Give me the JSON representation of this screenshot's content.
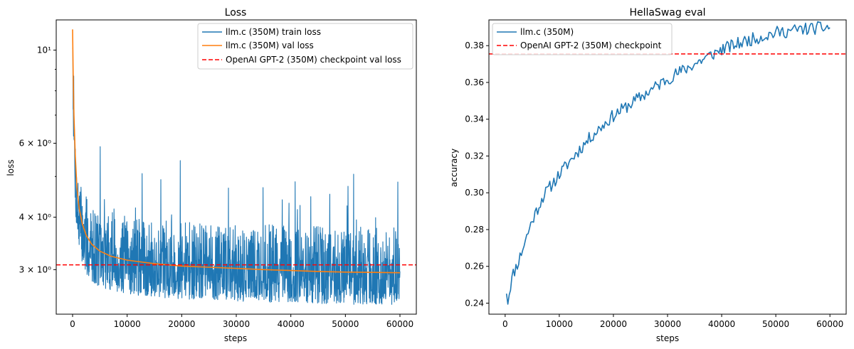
{
  "chart_data": [
    {
      "type": "line",
      "title": "Loss",
      "xlabel": "steps",
      "ylabel": "loss",
      "yscale": "log",
      "xlim": [
        -3000,
        63000
      ],
      "ylim": [
        2.35,
        11.8
      ],
      "xticks": [
        0,
        10000,
        20000,
        30000,
        40000,
        50000,
        60000
      ],
      "xtick_labels": [
        "0",
        "10000",
        "20000",
        "30000",
        "40000",
        "50000",
        "60000"
      ],
      "yticks": [
        3,
        4,
        6,
        10
      ],
      "ytick_labels": [
        "3 × 10⁰",
        "4 × 10⁰",
        "6 × 10⁰",
        "10¹"
      ],
      "legend_position": "upper right",
      "series": [
        {
          "name": "llm.c (350M) train loss",
          "color": "#1f77b4",
          "style": "solid",
          "kind": "noisy",
          "x_range": [
            0,
            60000
          ],
          "samples": 1400,
          "trend_x": [
            0,
            100,
            300,
            600,
            1000,
            1500,
            2000,
            3000,
            5000,
            8000,
            12000,
            20000,
            30000,
            40000,
            50000,
            60000
          ],
          "trend_y": [
            11.2,
            8.0,
            5.9,
            4.6,
            4.0,
            3.75,
            3.55,
            3.35,
            3.2,
            3.12,
            3.06,
            3.0,
            2.97,
            2.94,
            2.92,
            2.9
          ],
          "noise_low": 0.85,
          "noise_high": 1.3,
          "seed": 7
        },
        {
          "name": "llm.c (350M) val loss",
          "color": "#ff7f0e",
          "style": "solid",
          "kind": "smooth",
          "x": [
            0,
            100,
            250,
            500,
            800,
            1200,
            1800,
            2500,
            3500,
            5000,
            7000,
            10000,
            15000,
            20000,
            25000,
            30000,
            35000,
            40000,
            45000,
            50000,
            55000,
            60000
          ],
          "y": [
            11.2,
            8.8,
            7.0,
            5.6,
            4.7,
            4.2,
            3.85,
            3.62,
            3.45,
            3.32,
            3.23,
            3.16,
            3.1,
            3.06,
            3.04,
            3.02,
            3.0,
            2.985,
            2.97,
            2.96,
            2.955,
            2.95
          ]
        },
        {
          "name": "OpenAI GPT-2 (350M) checkpoint val loss",
          "color": "#ff0000",
          "style": "dashed",
          "kind": "hline",
          "y": 3.08
        }
      ]
    },
    {
      "type": "line",
      "title": "HellaSwag eval",
      "xlabel": "steps",
      "ylabel": "accuracy",
      "yscale": "linear",
      "xlim": [
        -3000,
        63000
      ],
      "ylim": [
        0.234,
        0.394
      ],
      "xticks": [
        0,
        10000,
        20000,
        30000,
        40000,
        50000,
        60000
      ],
      "xtick_labels": [
        "0",
        "10000",
        "20000",
        "30000",
        "40000",
        "50000",
        "60000"
      ],
      "yticks": [
        0.24,
        0.26,
        0.28,
        0.3,
        0.32,
        0.34,
        0.36,
        0.38
      ],
      "ytick_labels": [
        "0.24",
        "0.26",
        "0.28",
        "0.30",
        "0.32",
        "0.34",
        "0.36",
        "0.38"
      ],
      "legend_position": "upper left",
      "series": [
        {
          "name": "llm.c (350M)",
          "color": "#1f77b4",
          "style": "solid",
          "kind": "noisy_linear",
          "x_range": [
            250,
            60000
          ],
          "samples": 240,
          "trend_x": [
            250,
            500,
            1000,
            1500,
            2500,
            3500,
            5000,
            7000,
            10000,
            13000,
            16000,
            20000,
            25000,
            30000,
            35000,
            40000,
            45000,
            50000,
            55000,
            60000
          ],
          "trend_y": [
            0.247,
            0.241,
            0.25,
            0.256,
            0.263,
            0.272,
            0.285,
            0.298,
            0.31,
            0.321,
            0.331,
            0.342,
            0.352,
            0.362,
            0.37,
            0.378,
            0.383,
            0.387,
            0.389,
            0.39
          ],
          "noise": 0.0035,
          "seed": 11
        },
        {
          "name": "OpenAI GPT-2 (350M) checkpoint",
          "color": "#ff0000",
          "style": "dashed",
          "kind": "hline",
          "y": 0.3755
        }
      ]
    }
  ]
}
